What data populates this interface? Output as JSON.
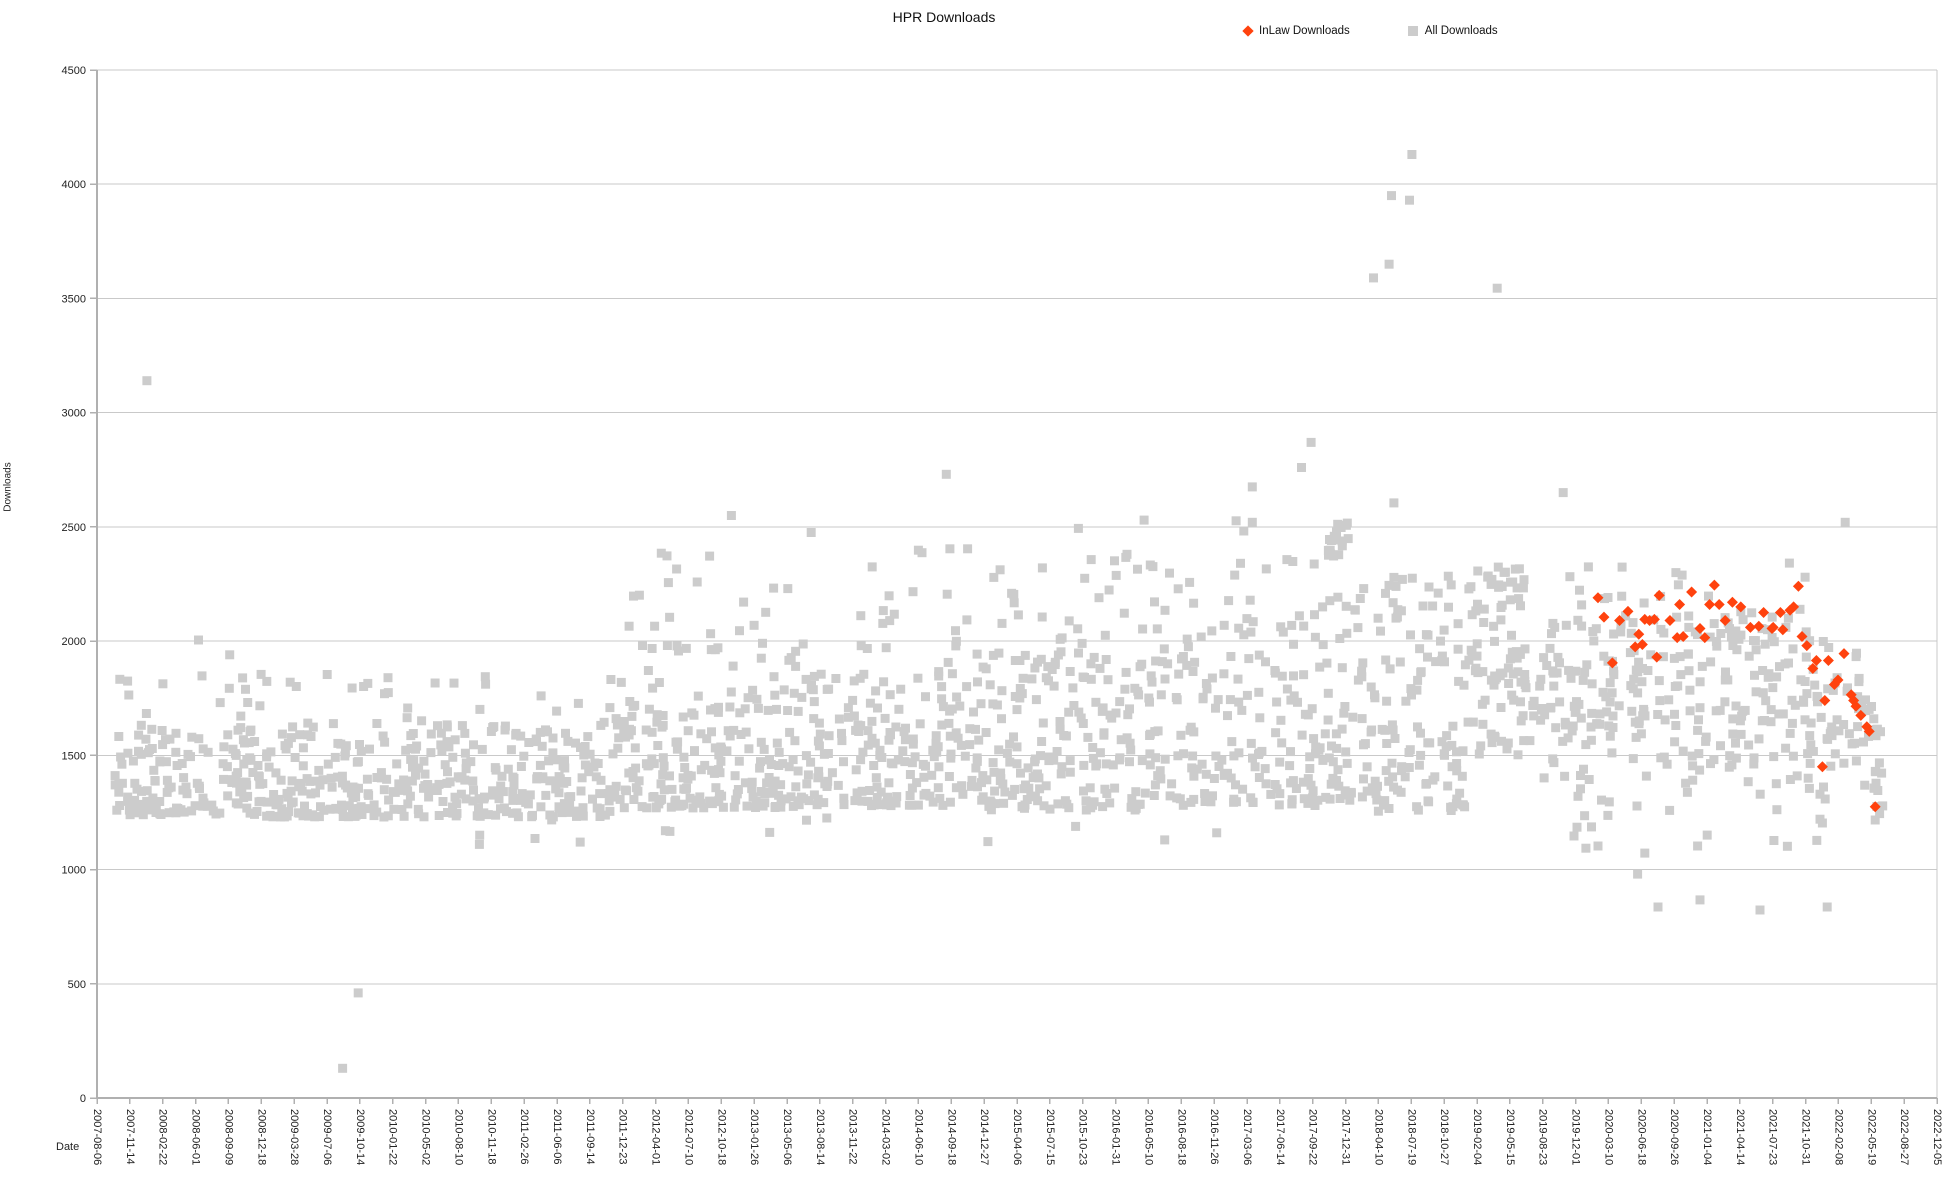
{
  "title": "HPR Downloads",
  "legend": [
    {
      "label": "InLaw Downloads",
      "marker": "diamond",
      "color": "#FF420E"
    },
    {
      "label": "All Downloads",
      "marker": "square",
      "color": "#CCCCCC"
    }
  ],
  "axes": {
    "x": {
      "label": "Date",
      "interval_days": 100,
      "tick_labels": [
        "2007-08-06",
        "2007-11-14",
        "2008-02-22",
        "2008-06-01",
        "2008-09-09",
        "2008-12-18",
        "2009-03-28",
        "2009-07-06",
        "2009-10-14",
        "2010-01-22",
        "2010-05-02",
        "2010-08-10",
        "2010-11-18",
        "2011-02-26",
        "2011-06-06",
        "2011-09-14",
        "2011-12-23",
        "2012-04-01",
        "2012-07-10",
        "2012-10-18",
        "2013-01-26",
        "2013-05-06",
        "2013-08-14",
        "2013-11-22",
        "2014-03-02",
        "2014-06-10",
        "2014-09-18",
        "2014-12-27",
        "2015-04-06",
        "2015-07-15",
        "2015-10-23",
        "2016-01-31",
        "2016-05-10",
        "2016-08-18",
        "2016-11-26",
        "2017-03-06",
        "2017-06-14",
        "2017-09-22",
        "2017-12-31",
        "2018-04-10",
        "2018-07-19",
        "2018-10-27",
        "2019-02-04",
        "2019-05-15",
        "2019-08-23",
        "2019-12-01",
        "2020-03-10",
        "2020-06-18",
        "2020-09-26",
        "2021-01-04",
        "2021-04-14",
        "2021-07-23",
        "2021-10-31",
        "2022-02-08",
        "2022-05-19",
        "2022-08-27",
        "2022-12-05"
      ]
    },
    "y": {
      "label": "Downloads",
      "min": 0,
      "max": 4500,
      "ticks": [
        0,
        500,
        1000,
        1500,
        2000,
        2500,
        3000,
        3500,
        4000,
        4500
      ]
    }
  },
  "chart_data": {
    "type": "scatter",
    "title": "HPR Downloads",
    "xlabel": "Date",
    "ylabel": "Downloads",
    "x_range": [
      "2007-08-06",
      "2022-12-05"
    ],
    "ylim": [
      0,
      4500
    ],
    "grid": true,
    "legend_position": "top",
    "seed": 20,
    "series": [
      {
        "name": "InLaw Downloads",
        "marker": "diamond",
        "color": "#FF420E",
        "points": [
          [
            2020.1,
            2190
          ],
          [
            2020.15,
            2105
          ],
          [
            2020.22,
            1905
          ],
          [
            2020.28,
            2090
          ],
          [
            2020.35,
            2130
          ],
          [
            2020.41,
            1975
          ],
          [
            2020.44,
            2030
          ],
          [
            2020.47,
            1985
          ],
          [
            2020.49,
            2095
          ],
          [
            2020.53,
            2090
          ],
          [
            2020.57,
            2095
          ],
          [
            2020.59,
            1930
          ],
          [
            2020.61,
            2200
          ],
          [
            2020.7,
            2090
          ],
          [
            2020.76,
            2015
          ],
          [
            2020.78,
            2160
          ],
          [
            2020.81,
            2020
          ],
          [
            2020.88,
            2215
          ],
          [
            2020.95,
            2055
          ],
          [
            2020.99,
            2015
          ],
          [
            2021.03,
            2160
          ],
          [
            2021.07,
            2245
          ],
          [
            2021.11,
            2160
          ],
          [
            2021.16,
            2090
          ],
          [
            2021.22,
            2170
          ],
          [
            2021.29,
            2150
          ],
          [
            2021.37,
            2060
          ],
          [
            2021.44,
            2065
          ],
          [
            2021.48,
            2125
          ],
          [
            2021.55,
            2055
          ],
          [
            2021.56,
            2060
          ],
          [
            2021.62,
            2125
          ],
          [
            2021.64,
            2050
          ],
          [
            2021.7,
            2135
          ],
          [
            2021.73,
            2150
          ],
          [
            2021.77,
            2240
          ],
          [
            2021.8,
            2020
          ],
          [
            2021.84,
            1980
          ],
          [
            2021.89,
            1880
          ],
          [
            2021.92,
            1915
          ],
          [
            2021.97,
            1450
          ],
          [
            2021.99,
            1740
          ],
          [
            2022.02,
            1915
          ],
          [
            2022.07,
            1810
          ],
          [
            2022.1,
            1830
          ],
          [
            2022.15,
            1945
          ],
          [
            2022.21,
            1765
          ],
          [
            2022.23,
            1740
          ],
          [
            2022.25,
            1715
          ],
          [
            2022.29,
            1675
          ],
          [
            2022.34,
            1625
          ],
          [
            2022.36,
            1605
          ],
          [
            2022.41,
            1275
          ]
        ]
      },
      {
        "name": "All Downloads",
        "marker": "square",
        "color": "#CCCCCC",
        "note": "dense weekly cloud approximated: explicit outliers + uniform segments [t0,t1,vmin,vmax,count,skew]",
        "outlier_points": [
          [
            2008.01,
            3140
          ],
          [
            2008.44,
            2005
          ],
          [
            2008.7,
            1940
          ],
          [
            2012.88,
            2550
          ],
          [
            2014.67,
            2730
          ],
          [
            2017.22,
            2675
          ],
          [
            2017.22,
            2520
          ],
          [
            2017.63,
            2760
          ],
          [
            2017.71,
            2870
          ],
          [
            2018.23,
            3590
          ],
          [
            2018.36,
            3650
          ],
          [
            2018.38,
            3950
          ],
          [
            2018.4,
            2605
          ],
          [
            2018.53,
            3930
          ],
          [
            2018.55,
            4130
          ],
          [
            2019.26,
            3545
          ],
          [
            2019.81,
            2650
          ],
          [
            2022.16,
            2520
          ],
          [
            2009.64,
            130
          ],
          [
            2009.77,
            460
          ],
          [
            2010.78,
            1110
          ],
          [
            2011.62,
            1120
          ],
          [
            2012.33,
            1170
          ],
          [
            2016.49,
            1130
          ],
          [
            2019.9,
            1147
          ],
          [
            2020.1,
            1103
          ],
          [
            2020.43,
            980
          ],
          [
            2020.49,
            1072
          ],
          [
            2020.6,
            836
          ],
          [
            2020.93,
            1103
          ],
          [
            2020.95,
            867
          ],
          [
            2021.01,
            1151
          ],
          [
            2021.45,
            823
          ],
          [
            2021.76,
            1410
          ],
          [
            2021.95,
            1330
          ],
          [
            2021.97,
            1204
          ],
          [
            2022.01,
            836
          ],
          [
            2022.4,
            1357
          ],
          [
            2022.41,
            1217
          ]
        ],
        "cloud_segments": [
          [
            2007.72,
            2009.0,
            1240,
            1620,
            140,
            1.6
          ],
          [
            2009.0,
            2010.5,
            1230,
            1600,
            170,
            1.6
          ],
          [
            2010.5,
            2012.0,
            1230,
            1640,
            170,
            1.5
          ],
          [
            2012.0,
            2013.5,
            1270,
            1780,
            180,
            1.5
          ],
          [
            2013.5,
            2015.0,
            1280,
            1900,
            180,
            1.5
          ],
          [
            2015.0,
            2016.3,
            1260,
            1950,
            160,
            1.4
          ],
          [
            2016.3,
            2017.8,
            1280,
            2100,
            170,
            1.3
          ],
          [
            2017.8,
            2018.15,
            1300,
            2200,
            45,
            1.2
          ],
          [
            2018.15,
            2019.0,
            1250,
            1640,
            70,
            1.2
          ],
          [
            2018.1,
            2019.0,
            1700,
            2300,
            55,
            1.0
          ],
          [
            2019.0,
            2019.5,
            1850,
            2330,
            55,
            1.0
          ],
          [
            2019.0,
            2019.65,
            1500,
            1870,
            45,
            1.0
          ],
          [
            2019.6,
            2022.0,
            1620,
            2130,
            200,
            1.1
          ],
          [
            2019.65,
            2022.05,
            1280,
            1620,
            70,
            0.8
          ],
          [
            2022.0,
            2022.3,
            1450,
            2000,
            30,
            1.2
          ],
          [
            2022.3,
            2022.5,
            1240,
            1750,
            22,
            1.1
          ],
          [
            2007.75,
            2009.5,
            1620,
            1860,
            22,
            1.3
          ],
          [
            2009.5,
            2012.0,
            1620,
            1880,
            30,
            1.3
          ],
          [
            2012.0,
            2014.0,
            1780,
            2250,
            40,
            1.5
          ],
          [
            2012.2,
            2014.2,
            2250,
            2500,
            8,
            1.0
          ],
          [
            2014.0,
            2016.0,
            1900,
            2350,
            40,
            1.5
          ],
          [
            2014.3,
            2016.3,
            2350,
            2500,
            6,
            1.0
          ],
          [
            2016.0,
            2017.8,
            2100,
            2550,
            28,
            1.4
          ],
          [
            2017.83,
            2018.02,
            2370,
            2540,
            18,
            0.8
          ],
          [
            2019.7,
            2021.9,
            2120,
            2350,
            18,
            1.2
          ],
          [
            2009.5,
            2017.5,
            1120,
            1230,
            10,
            1.0
          ],
          [
            2019.8,
            2022.35,
            1060,
            1280,
            12,
            1.0
          ]
        ]
      }
    ]
  }
}
